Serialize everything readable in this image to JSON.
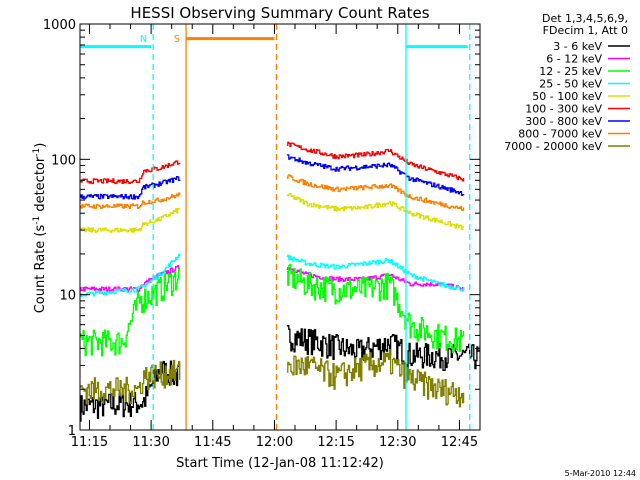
{
  "chart_data": {
    "type": "line",
    "title": "HESSI Observing Summary Count Rates",
    "xlabel": "Start Time (12-Jan-08 11:12:42)",
    "ylabel_main": "Count Rate (s",
    "ylabel_sup1": "-1",
    "ylabel_mid": " detector",
    "ylabel_sup2": "-1",
    "ylabel_end": ")",
    "yscale": "log",
    "xlim_min": [
      672.7,
      770
    ],
    "ylim": [
      1,
      1000
    ],
    "xticks": [
      {
        "min": 675,
        "label": "11:15"
      },
      {
        "min": 690,
        "label": "11:30"
      },
      {
        "min": 705,
        "label": "11:45"
      },
      {
        "min": 720,
        "label": "12:00"
      },
      {
        "min": 735,
        "label": "12:15"
      },
      {
        "min": 750,
        "label": "12:30"
      },
      {
        "min": 765,
        "label": "12:45"
      }
    ],
    "yticks": [
      {
        "value": 1,
        "label": "1"
      },
      {
        "value": 10,
        "label": "10"
      },
      {
        "value": 100,
        "label": "100"
      },
      {
        "value": 1000,
        "label": "1000"
      }
    ],
    "legend": {
      "header": [
        "Det 1,3,4,5,6,9,",
        "FDecim 1, Att 0"
      ],
      "placement": "right"
    },
    "series": [
      {
        "name": "3 - 6 keV",
        "color": "#000000",
        "seg1": [
          [
            672.7,
            1.5
          ],
          [
            688,
            1.6
          ],
          [
            692,
            2.8
          ],
          [
            697,
            2.5
          ]
        ],
        "seg2": [
          [
            723,
            5
          ],
          [
            729,
            4.6
          ],
          [
            740,
            3.8
          ],
          [
            748,
            4.4
          ],
          [
            753,
            3.6
          ],
          [
            770,
            3.5
          ]
        ]
      },
      {
        "name": "6 - 12 keV",
        "color": "#ff00ff",
        "seg1": [
          [
            672.7,
            11
          ],
          [
            687,
            11
          ],
          [
            688,
            12
          ],
          [
            692,
            14
          ],
          [
            697,
            16
          ]
        ],
        "seg2": [
          [
            723,
            16
          ],
          [
            728,
            14
          ],
          [
            735,
            13
          ],
          [
            742,
            13
          ],
          [
            748,
            14
          ],
          [
            753,
            12
          ],
          [
            760,
            12
          ],
          [
            766,
            11
          ]
        ]
      },
      {
        "name": "12 - 25 keV",
        "color": "#00ff00",
        "seg1": [
          [
            672.7,
            4.5
          ],
          [
            683,
            4.5
          ],
          [
            687,
            9
          ],
          [
            692,
            11
          ],
          [
            697,
            14
          ]
        ],
        "seg2": [
          [
            723,
            14
          ],
          [
            728,
            12
          ],
          [
            735,
            11
          ],
          [
            742,
            11
          ],
          [
            748,
            12
          ],
          [
            753,
            6
          ],
          [
            760,
            5
          ],
          [
            766,
            4.5
          ]
        ]
      },
      {
        "name": "25 - 50 keV",
        "color": "#00ffff",
        "seg1": [
          [
            672.7,
            10
          ],
          [
            687,
            11
          ],
          [
            692,
            14
          ],
          [
            697,
            20
          ]
        ],
        "seg2": [
          [
            723,
            19
          ],
          [
            728,
            17
          ],
          [
            735,
            16
          ],
          [
            742,
            17
          ],
          [
            748,
            18
          ],
          [
            753,
            14
          ],
          [
            760,
            12
          ],
          [
            766,
            11
          ]
        ]
      },
      {
        "name": "50 - 100 keV",
        "color": "#dddd00",
        "seg1": [
          [
            672.7,
            30
          ],
          [
            687,
            30
          ],
          [
            688,
            33
          ],
          [
            692,
            36
          ],
          [
            697,
            43
          ]
        ],
        "seg2": [
          [
            723,
            55
          ],
          [
            728,
            47
          ],
          [
            735,
            43
          ],
          [
            742,
            44
          ],
          [
            748,
            48
          ],
          [
            753,
            40
          ],
          [
            760,
            35
          ],
          [
            766,
            31
          ]
        ]
      },
      {
        "name": "100 - 300 keV",
        "color": "#ff0000",
        "seg1": [
          [
            672.7,
            69
          ],
          [
            687,
            69
          ],
          [
            688,
            82
          ],
          [
            692,
            86
          ],
          [
            697,
            97
          ]
        ],
        "seg2": [
          [
            723,
            130
          ],
          [
            728,
            118
          ],
          [
            735,
            105
          ],
          [
            742,
            108
          ],
          [
            748,
            116
          ],
          [
            753,
            92
          ],
          [
            760,
            80
          ],
          [
            766,
            71
          ]
        ]
      },
      {
        "name": "300 - 800 keV",
        "color": "#0000ff",
        "seg1": [
          [
            672.7,
            53
          ],
          [
            687,
            53
          ],
          [
            688,
            62
          ],
          [
            692,
            66
          ],
          [
            697,
            73
          ]
        ],
        "seg2": [
          [
            723,
            105
          ],
          [
            728,
            94
          ],
          [
            735,
            85
          ],
          [
            742,
            88
          ],
          [
            748,
            91
          ],
          [
            753,
            72
          ],
          [
            760,
            63
          ],
          [
            766,
            56
          ]
        ]
      },
      {
        "name": "800 - 7000 keV",
        "color": "#ff8000",
        "seg1": [
          [
            672.7,
            45
          ],
          [
            687,
            45
          ],
          [
            688,
            48
          ],
          [
            692,
            50
          ],
          [
            697,
            55
          ]
        ],
        "seg2": [
          [
            723,
            75
          ],
          [
            728,
            66
          ],
          [
            735,
            60
          ],
          [
            742,
            62
          ],
          [
            748,
            64
          ],
          [
            753,
            53
          ],
          [
            760,
            47
          ],
          [
            766,
            43
          ]
        ]
      },
      {
        "name": "7000 - 20000 keV",
        "color": "#808000",
        "seg1": [
          [
            672.7,
            2
          ],
          [
            687,
            2
          ],
          [
            688,
            2.5
          ],
          [
            692,
            2.6
          ],
          [
            697,
            2.7
          ]
        ],
        "seg2": [
          [
            723,
            3
          ],
          [
            728,
            3
          ],
          [
            735,
            2.5
          ],
          [
            742,
            3
          ],
          [
            748,
            3.2
          ],
          [
            753,
            2.4
          ],
          [
            760,
            2
          ],
          [
            766,
            1.9
          ]
        ]
      }
    ],
    "annotations": [
      {
        "type": "bar",
        "label": "",
        "color": "#00ffff",
        "y": 680,
        "x_from": 672.7,
        "x_to": 690,
        "style": "solid"
      },
      {
        "type": "vline",
        "label": "N",
        "color": "#00ffff",
        "x": 690.5,
        "style": "dashed"
      },
      {
        "type": "vline",
        "label": "S",
        "color": "#ff8000",
        "x": 698.5,
        "style": "solid"
      },
      {
        "type": "bar",
        "label": "",
        "color": "#ff8000",
        "y": 780,
        "x_from": 698.5,
        "x_to": 720,
        "style": "solid"
      },
      {
        "type": "vline",
        "label": "",
        "color": "#ff8000",
        "x": 720.5,
        "style": "dashed"
      },
      {
        "type": "vline",
        "label": "",
        "color": "#00ffff",
        "x": 752,
        "style": "solid"
      },
      {
        "type": "bar",
        "label": "",
        "color": "#00ffff",
        "y": 680,
        "x_from": 752,
        "x_to": 767,
        "style": "solid"
      },
      {
        "type": "vline",
        "label": "",
        "color": "#00ffff",
        "x": 767.5,
        "style": "dashed"
      }
    ],
    "grid": false
  },
  "footer": {
    "timestamp": "5-Mar-2010 12:44"
  }
}
